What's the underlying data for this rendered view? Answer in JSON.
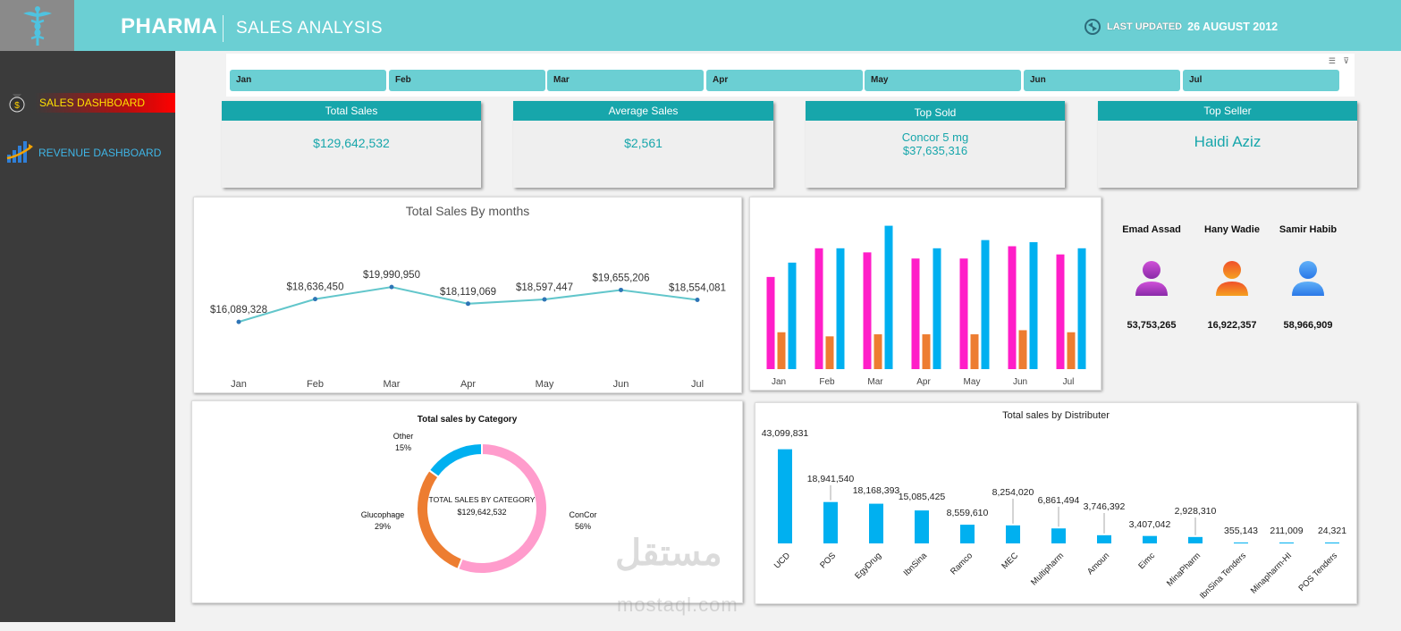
{
  "header": {
    "brand": "PHARMA",
    "subtitle": "SALES ANALYSIS",
    "last_updated_label": "LAST UPDATED",
    "last_updated_date": "26 AUGUST 2012",
    "color": "#6bcfd3"
  },
  "sidebar": {
    "items": [
      {
        "label": "SALES DASHBOARD",
        "icon": "money-bag-icon",
        "active": true
      },
      {
        "label": "REVENUE DASHBOARD",
        "icon": "bar-growth-icon",
        "active": false
      }
    ]
  },
  "slicer": {
    "months": [
      "Jan",
      "Feb",
      "Mar",
      "Apr",
      "May",
      "Jun",
      "Jul"
    ],
    "tools": [
      "multi-select-icon",
      "clear-filter-icon"
    ]
  },
  "kpis": [
    {
      "title": "Total Sales",
      "value": "$129,642,532"
    },
    {
      "title": "Average Sales",
      "value": "$2,561"
    },
    {
      "title": "Top Sold",
      "value": "Concor 5 mg",
      "value2": "$37,635,316"
    },
    {
      "title": "Top Seller",
      "value": "Haidi Aziz"
    }
  ],
  "sellers": [
    {
      "name": "Emad Assad",
      "value": "53,753,265",
      "color": "#b040c0",
      "icon": "user-avatar-icon"
    },
    {
      "name": "Hany Wadie",
      "value": "16,922,357",
      "color": "#f07a20",
      "icon": "user-avatar-icon"
    },
    {
      "name": "Samir Habib",
      "value": "58,966,909",
      "color": "#3a8ef0",
      "icon": "user-avatar-icon"
    }
  ],
  "chart_data": [
    {
      "type": "line",
      "title": "Total Sales By months",
      "categories": [
        "Jan",
        "Feb",
        "Mar",
        "Apr",
        "May",
        "Jun",
        "Jul"
      ],
      "values": [
        16089328,
        18636450,
        19990950,
        18119069,
        18597447,
        19655206,
        18554081
      ],
      "labels": [
        "$16,089,328",
        "$18,636,450",
        "$19,990,950",
        "$18,119,069",
        "$18,597,447",
        "$19,655,206",
        "$18,554,081"
      ],
      "ylim": [
        0,
        22000000
      ],
      "color": "#62c6cb",
      "grid": false
    },
    {
      "type": "bar",
      "title": "",
      "categories": [
        "Jan",
        "Feb",
        "Mar",
        "Apr",
        "May",
        "Jun",
        "Jul"
      ],
      "series": [
        {
          "values": [
            45,
            59,
            57,
            54,
            54,
            60,
            56
          ],
          "color": "#ff1ec8"
        },
        {
          "values": [
            18,
            16,
            17,
            17,
            17,
            19,
            18
          ],
          "color": "#ed7d31"
        },
        {
          "values": [
            52,
            59,
            70,
            59,
            63,
            62,
            59
          ],
          "color": "#00b0f0"
        }
      ],
      "ylim": [
        0,
        72
      ],
      "grid": false
    },
    {
      "type": "pie",
      "title": "Total sales by Category",
      "center_title": "TOTAL SALES BY CATEGORY",
      "center_value": "$129,642,532",
      "slices": [
        {
          "label": "ConCor",
          "pct": "56%",
          "value": 56,
          "color": "#ff9ccc"
        },
        {
          "label": "Glucophage",
          "pct": "29%",
          "value": 29,
          "color": "#ed7d31"
        },
        {
          "label": "Other",
          "pct": "15%",
          "value": 15,
          "color": "#00b0f0"
        }
      ]
    },
    {
      "type": "bar",
      "title": "Total sales by Distributer",
      "categories": [
        "UCD",
        "POS",
        "EgyDrug",
        "IbnSina",
        "Ramco",
        "MEC",
        "Multipharm",
        "Amoun",
        "Eimc",
        "MinaPharm",
        "IbnSina Tenders",
        "Minapharm-HI",
        "POS Tenders"
      ],
      "values": [
        43099831,
        18941540,
        18168393,
        15085425,
        8559610,
        8254020,
        6861494,
        3746392,
        3407042,
        2928310,
        355143,
        211009,
        24321
      ],
      "labels": [
        "43,099,831",
        "18,941,540",
        "18,168,393",
        "15,085,425",
        "8,559,610",
        "8,254,020",
        "6,861,494",
        "3,746,392",
        "3,407,042",
        "2,928,310",
        "355,143",
        "211,009",
        "24,321"
      ],
      "ylim": [
        0,
        45000000
      ],
      "color": "#00b0f0",
      "grid": false
    }
  ],
  "watermark": {
    "text": "مستقل",
    "sub": "mostaql.com"
  }
}
